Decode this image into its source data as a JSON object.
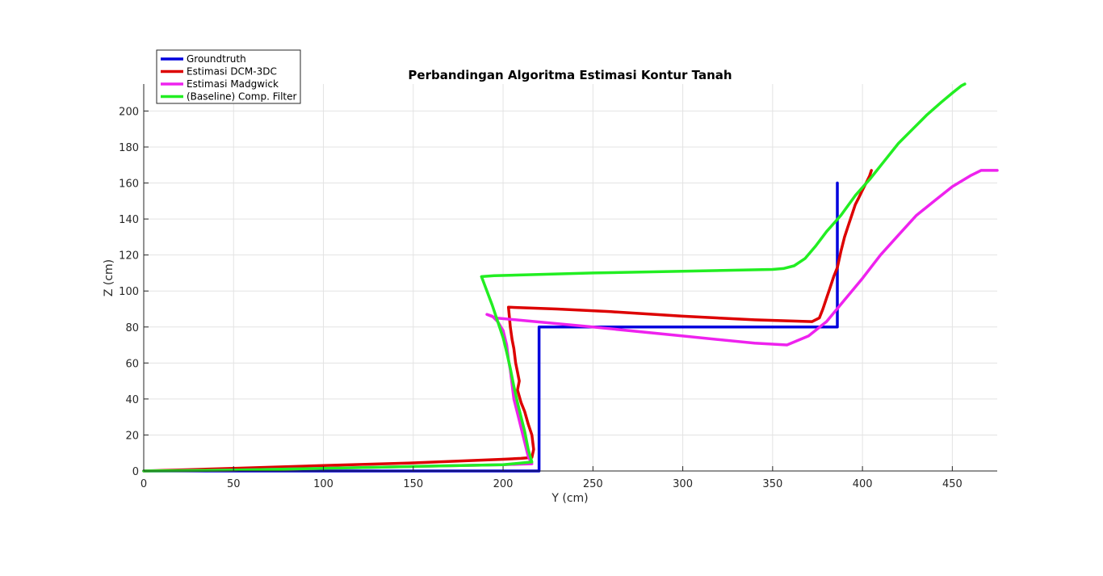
{
  "chart_data": {
    "type": "line",
    "title": "Perbandingan Algoritma Estimasi Kontur Tanah",
    "xlabel": "Y (cm)",
    "ylabel": "Z (cm)",
    "xlim": [
      0,
      475
    ],
    "ylim": [
      0,
      215
    ],
    "xticks": [
      0,
      50,
      100,
      150,
      200,
      250,
      300,
      350,
      400,
      450
    ],
    "yticks": [
      0,
      20,
      40,
      60,
      80,
      100,
      120,
      140,
      160,
      180,
      200
    ],
    "grid": true,
    "legend_position": "top-left",
    "series": [
      {
        "name": "Groundtruth",
        "color": "#0000dd",
        "x": [
          0,
          220,
          220,
          386,
          386
        ],
        "y": [
          0,
          0,
          80,
          80,
          160
        ]
      },
      {
        "name": "Estimasi DCM-3DC",
        "color": "#dd0000",
        "x": [
          0,
          50,
          100,
          150,
          200,
          210,
          216,
          217,
          216,
          214,
          212,
          210,
          208,
          209,
          208,
          207,
          206,
          205,
          204,
          203,
          230,
          260,
          300,
          340,
          372,
          376,
          378,
          380,
          382,
          384,
          386,
          388,
          390,
          392,
          394,
          396,
          398,
          400,
          402,
          404,
          405
        ],
        "y": [
          0,
          1.5,
          3,
          4.5,
          6.5,
          7,
          7.5,
          12,
          20,
          26,
          33,
          38,
          45,
          50,
          55,
          60,
          68,
          73,
          80,
          91,
          90,
          88.5,
          86,
          84,
          83,
          85,
          90,
          96,
          102,
          108,
          113,
          122,
          130,
          136,
          142,
          148,
          152,
          156,
          160,
          164,
          167
        ]
      },
      {
        "name": "Estimasi Madgwick",
        "color": "#ee22ee",
        "x": [
          0,
          50,
          100,
          150,
          200,
          216,
          214,
          212,
          210,
          208,
          206,
          205,
          204,
          203,
          202,
          200,
          197,
          194,
          191,
          196,
          250,
          300,
          340,
          358,
          370,
          380,
          390,
          400,
          410,
          420,
          430,
          440,
          450,
          460,
          466,
          475
        ],
        "y": [
          0,
          0.5,
          1.5,
          2.5,
          3.5,
          4,
          8,
          16,
          24,
          32,
          40,
          48,
          56,
          62,
          70,
          78,
          83,
          86,
          87,
          85,
          80,
          75,
          71,
          70,
          75,
          83,
          95,
          107,
          120,
          131,
          142,
          150,
          158,
          164,
          167,
          167
        ]
      },
      {
        "name": "(Baseline) Comp. Filter",
        "color": "#22ee22",
        "x": [
          0,
          50,
          100,
          150,
          200,
          216,
          214,
          212,
          210,
          208,
          206,
          204,
          202,
          200,
          197,
          194,
          188,
          195,
          250,
          300,
          350,
          356,
          362,
          368,
          374,
          380,
          388,
          396,
          404,
          412,
          420,
          428,
          436,
          444,
          450,
          455,
          457
        ],
        "y": [
          0,
          0.5,
          1.5,
          2.5,
          3.5,
          5,
          12,
          22,
          30,
          38,
          47,
          57,
          66,
          74,
          83,
          92,
          108,
          108.5,
          110,
          111,
          112,
          112.5,
          114,
          118,
          125,
          133,
          142,
          153,
          162,
          172,
          182,
          190,
          198,
          205,
          210,
          214,
          215
        ]
      }
    ]
  }
}
